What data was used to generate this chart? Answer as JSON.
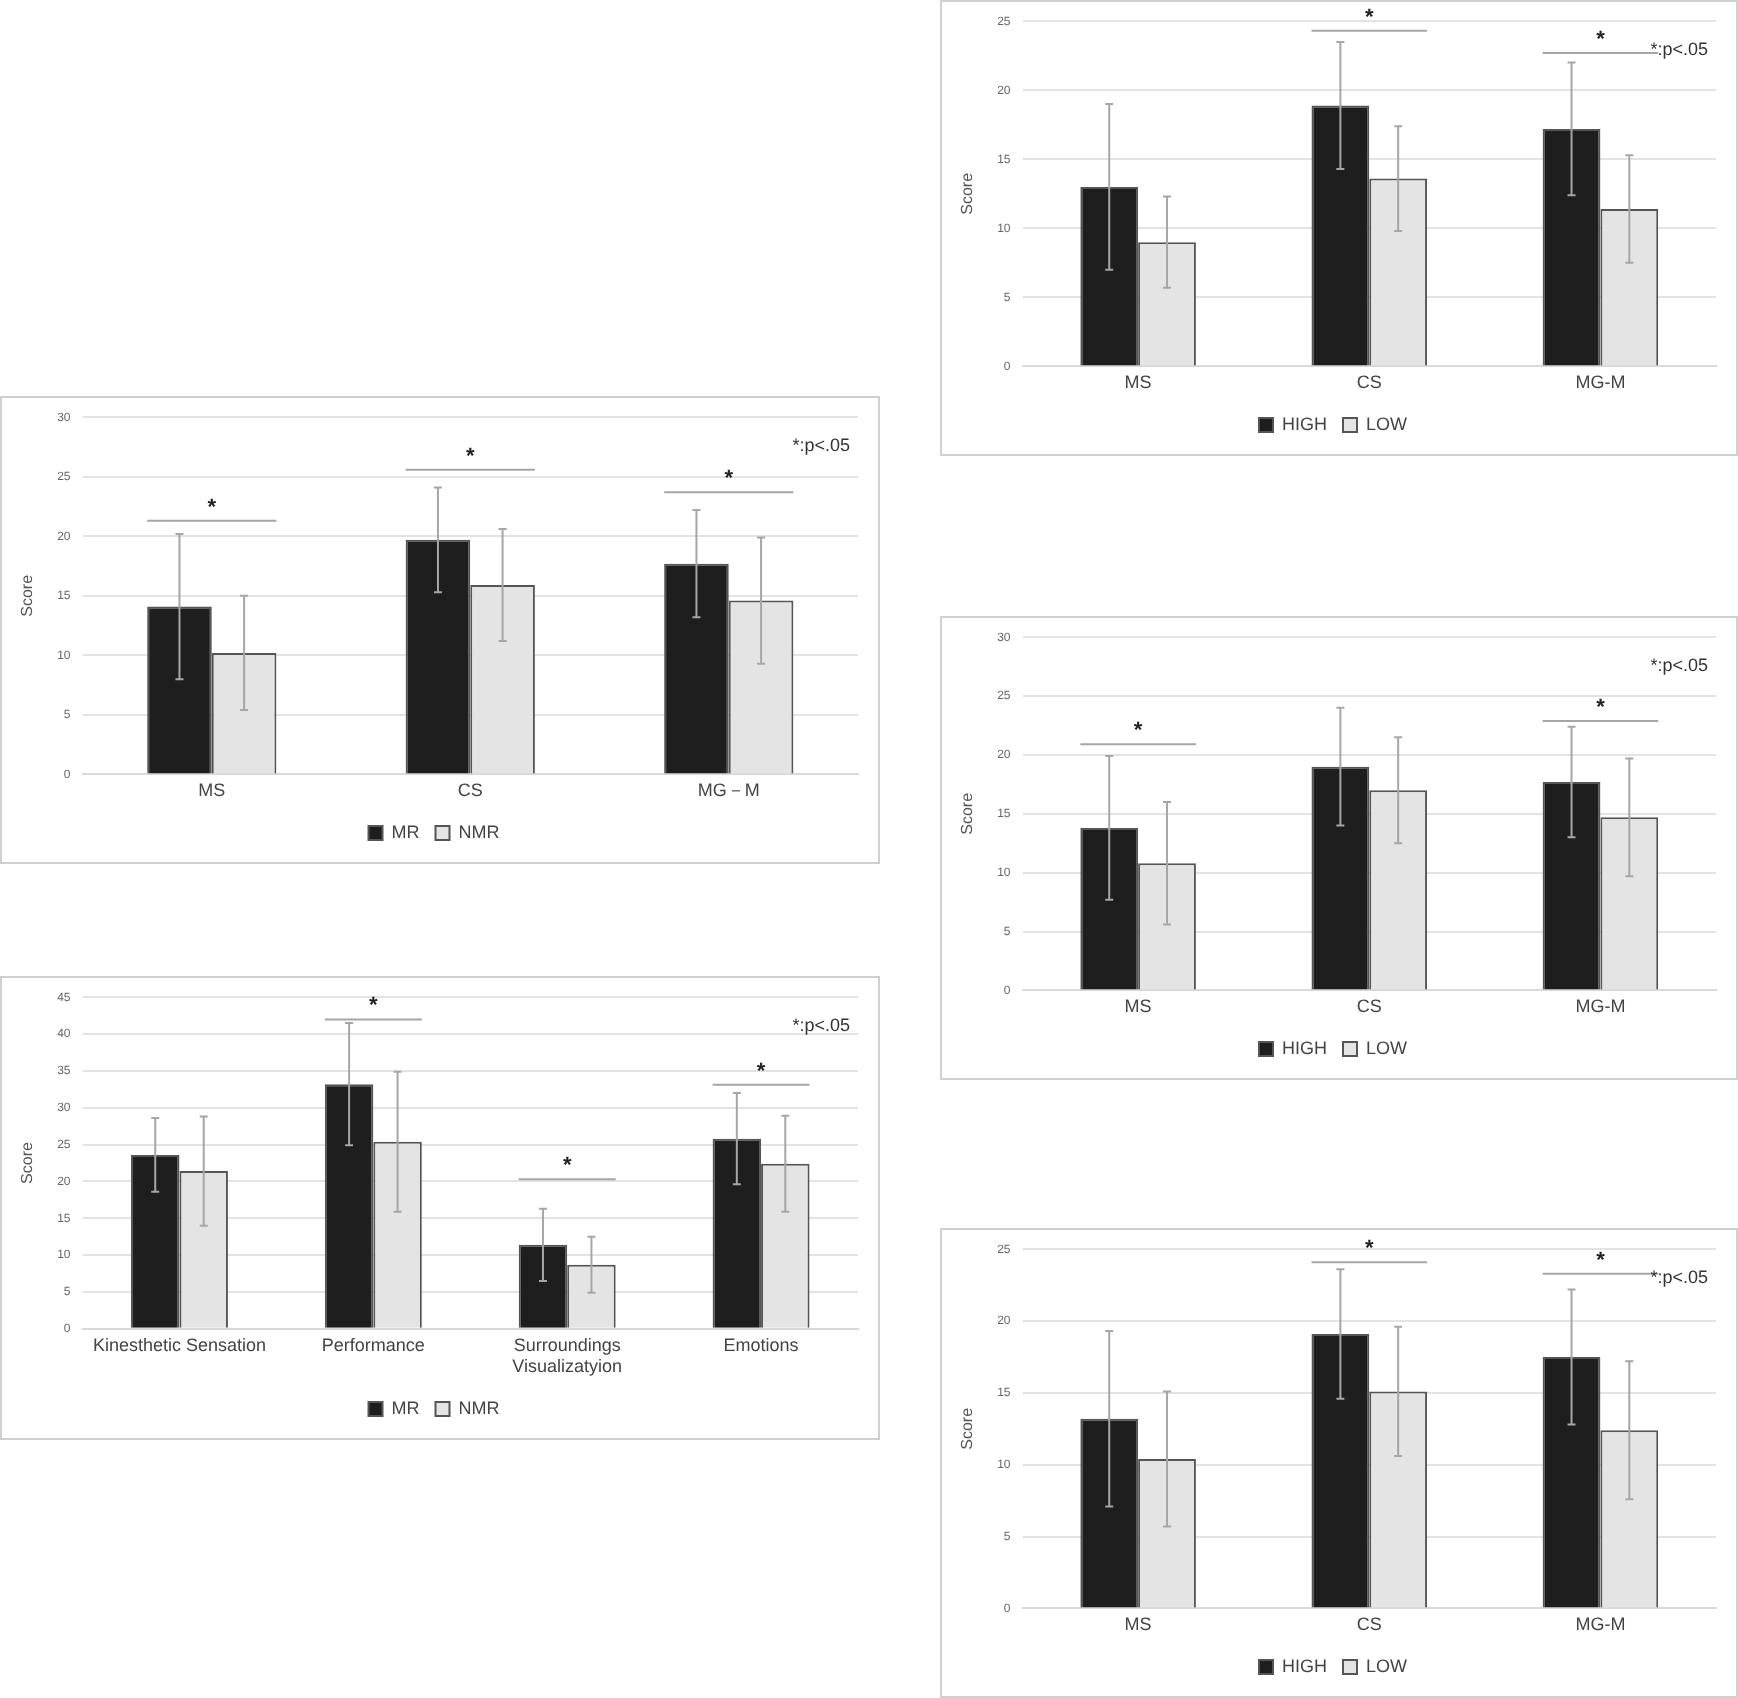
{
  "chart_data": [
    {
      "type": "bar",
      "ylabel": "Score",
      "categories": [
        "MS",
        "CS",
        "MG-M"
      ],
      "series": [
        {
          "name": "HIGH",
          "color": "#1e1e1e",
          "values": [
            13.0,
            18.9,
            17.2
          ],
          "errors": [
            6.0,
            4.6,
            4.8
          ]
        },
        {
          "name": "LOW",
          "color": "#e4e4e4",
          "values": [
            9.0,
            13.6,
            11.4
          ],
          "errors": [
            3.3,
            3.8,
            3.9
          ]
        }
      ],
      "ylim": [
        0,
        25
      ],
      "yticks": [
        0,
        5,
        10,
        15,
        20,
        25
      ],
      "grid": "y",
      "legend": "bottom",
      "annotations": [
        "*",
        "*",
        "*:p<.05"
      ]
    },
    {
      "type": "bar",
      "ylabel": "Score",
      "categories": [
        "MS",
        "CS",
        "MG－M"
      ],
      "series": [
        {
          "name": "MR",
          "color": "#1e1e1e",
          "values": [
            14.1,
            19.7,
            17.7
          ],
          "errors": [
            6.1,
            4.4,
            4.5
          ]
        },
        {
          "name": "NMR",
          "color": "#e4e4e4",
          "values": [
            10.2,
            15.9,
            14.6
          ],
          "errors": [
            4.8,
            4.7,
            5.3
          ]
        }
      ],
      "ylim": [
        0,
        30
      ],
      "yticks": [
        0,
        5,
        10,
        15,
        20,
        25,
        30
      ],
      "grid": "y",
      "legend": "bottom",
      "annotations": [
        "*",
        "*",
        "*",
        "*:p<.05"
      ]
    },
    {
      "type": "bar",
      "ylabel": "Score",
      "categories": [
        "MS",
        "CS",
        "MG-M"
      ],
      "series": [
        {
          "name": "HIGH",
          "color": "#1e1e1e",
          "values": [
            13.8,
            19.0,
            17.7
          ],
          "errors": [
            6.1,
            5.0,
            4.7
          ]
        },
        {
          "name": "LOW",
          "color": "#e4e4e4",
          "values": [
            10.8,
            17.0,
            14.7
          ],
          "errors": [
            5.2,
            4.5,
            5.0
          ]
        }
      ],
      "ylim": [
        0,
        30
      ],
      "yticks": [
        0,
        5,
        10,
        15,
        20,
        25,
        30
      ],
      "grid": "y",
      "legend": "bottom",
      "annotations": [
        "*",
        "*",
        "*:p<.05"
      ]
    },
    {
      "type": "bar",
      "ylabel": "Score",
      "categories": [
        "Kinesthetic Sensation",
        "Performance",
        "Surroundings\nVisualizatyion",
        "Emotions"
      ],
      "series": [
        {
          "name": "MR",
          "color": "#1e1e1e",
          "values": [
            23.6,
            33.2,
            11.4,
            25.8
          ],
          "errors": [
            5.0,
            8.3,
            4.9,
            6.2
          ]
        },
        {
          "name": "NMR",
          "color": "#e4e4e4",
          "values": [
            21.4,
            25.4,
            8.7,
            22.4
          ],
          "errors": [
            7.4,
            9.5,
            3.8,
            6.5
          ]
        }
      ],
      "ylim": [
        0,
        45
      ],
      "yticks": [
        0,
        5,
        10,
        15,
        20,
        25,
        30,
        35,
        40,
        45
      ],
      "grid": "y",
      "legend": "bottom",
      "annotations": [
        "*",
        "*",
        "*",
        "*:p<.05"
      ]
    },
    {
      "type": "bar",
      "ylabel": "Score",
      "categories": [
        "MS",
        "CS",
        "MG-M"
      ],
      "series": [
        {
          "name": "HIGH",
          "color": "#1e1e1e",
          "values": [
            13.2,
            19.1,
            17.5
          ],
          "errors": [
            6.1,
            4.5,
            4.7
          ]
        },
        {
          "name": "LOW",
          "color": "#e4e4e4",
          "values": [
            10.4,
            15.1,
            12.4
          ],
          "errors": [
            4.7,
            4.5,
            4.8
          ]
        }
      ],
      "ylim": [
        0,
        25
      ],
      "yticks": [
        0,
        5,
        10,
        15,
        20,
        25
      ],
      "grid": "y",
      "legend": "bottom",
      "annotations": [
        "*",
        "*",
        "*:p<.05"
      ]
    }
  ]
}
